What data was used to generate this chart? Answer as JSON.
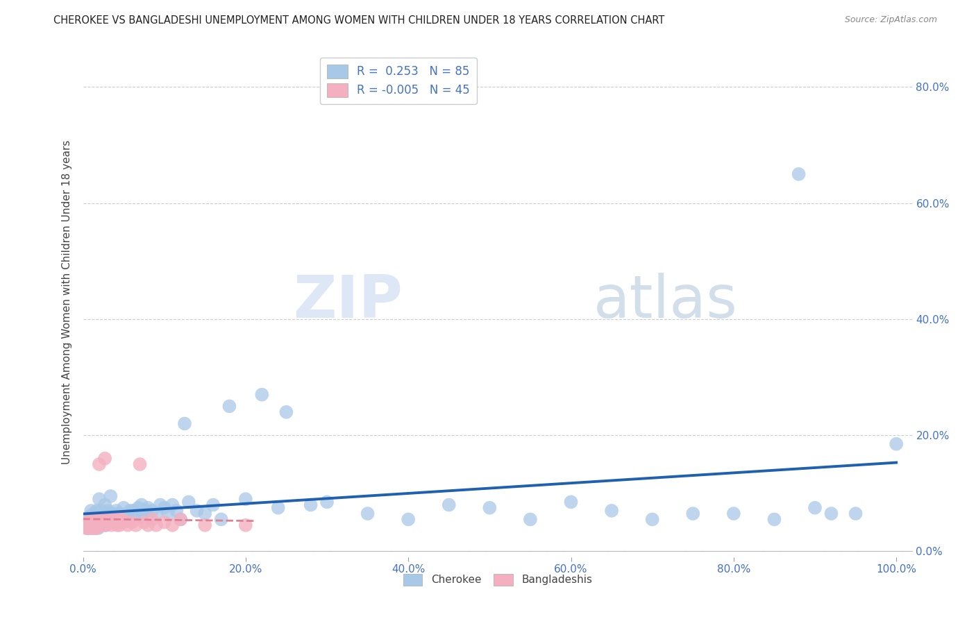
{
  "title": "CHEROKEE VS BANGLADESHI UNEMPLOYMENT AMONG WOMEN WITH CHILDREN UNDER 18 YEARS CORRELATION CHART",
  "source": "Source: ZipAtlas.com",
  "ylabel": "Unemployment Among Women with Children Under 18 years",
  "cherokee_color": "#a8c8e8",
  "bangladeshi_color": "#f4b0c0",
  "cherokee_line_color": "#2060b0",
  "bangladeshi_line_color": "#e08090",
  "background_color": "#ffffff",
  "grid_color": "#cccccc",
  "watermark_zip": "#c8d8ee",
  "watermark_atlas": "#b8c8e0",
  "cherokee_R": 0.253,
  "cherokee_N": 85,
  "bangladeshi_R": -0.005,
  "bangladeshi_N": 45,
  "ytick_vals": [
    0.0,
    0.2,
    0.4,
    0.6,
    0.8
  ],
  "ytick_labels": [
    "0.0%",
    "20.0%",
    "40.0%",
    "60.0%",
    "80.0%"
  ],
  "xtick_vals": [
    0.0,
    0.2,
    0.4,
    0.6,
    0.8,
    1.0
  ],
  "xtick_labels": [
    "0.0%",
    "20.0%",
    "40.0%",
    "60.0%",
    "80.0%",
    "100.0%"
  ],
  "cherokee_x": [
    0.005,
    0.007,
    0.008,
    0.009,
    0.01,
    0.01,
    0.01,
    0.012,
    0.013,
    0.015,
    0.016,
    0.017,
    0.018,
    0.019,
    0.02,
    0.02,
    0.021,
    0.022,
    0.023,
    0.025,
    0.026,
    0.027,
    0.028,
    0.03,
    0.031,
    0.032,
    0.033,
    0.034,
    0.035,
    0.038,
    0.04,
    0.041,
    0.043,
    0.045,
    0.048,
    0.05,
    0.052,
    0.055,
    0.058,
    0.06,
    0.062,
    0.065,
    0.068,
    0.07,
    0.072,
    0.075,
    0.078,
    0.08,
    0.085,
    0.09,
    0.095,
    0.1,
    0.105,
    0.11,
    0.115,
    0.12,
    0.125,
    0.13,
    0.14,
    0.15,
    0.16,
    0.17,
    0.18,
    0.2,
    0.22,
    0.24,
    0.25,
    0.28,
    0.3,
    0.35,
    0.4,
    0.45,
    0.5,
    0.55,
    0.6,
    0.65,
    0.7,
    0.75,
    0.8,
    0.85,
    0.88,
    0.9,
    0.92,
    0.95,
    1.0
  ],
  "cherokee_y": [
    0.04,
    0.05,
    0.06,
    0.05,
    0.04,
    0.055,
    0.07,
    0.05,
    0.065,
    0.04,
    0.06,
    0.07,
    0.05,
    0.04,
    0.06,
    0.09,
    0.05,
    0.07,
    0.05,
    0.06,
    0.055,
    0.08,
    0.045,
    0.05,
    0.07,
    0.065,
    0.06,
    0.095,
    0.05,
    0.065,
    0.055,
    0.07,
    0.05,
    0.065,
    0.055,
    0.075,
    0.06,
    0.055,
    0.07,
    0.065,
    0.07,
    0.06,
    0.075,
    0.06,
    0.08,
    0.065,
    0.07,
    0.075,
    0.07,
    0.065,
    0.08,
    0.075,
    0.065,
    0.08,
    0.07,
    0.055,
    0.22,
    0.085,
    0.07,
    0.065,
    0.08,
    0.055,
    0.25,
    0.09,
    0.27,
    0.075,
    0.24,
    0.08,
    0.085,
    0.065,
    0.055,
    0.08,
    0.075,
    0.055,
    0.085,
    0.07,
    0.055,
    0.065,
    0.065,
    0.055,
    0.65,
    0.075,
    0.065,
    0.065,
    0.185
  ],
  "bangladeshi_x": [
    0.004,
    0.005,
    0.006,
    0.007,
    0.008,
    0.009,
    0.01,
    0.011,
    0.012,
    0.013,
    0.014,
    0.015,
    0.016,
    0.017,
    0.018,
    0.019,
    0.02,
    0.021,
    0.022,
    0.023,
    0.025,
    0.027,
    0.028,
    0.03,
    0.032,
    0.035,
    0.038,
    0.04,
    0.042,
    0.045,
    0.048,
    0.05,
    0.055,
    0.06,
    0.065,
    0.07,
    0.075,
    0.08,
    0.085,
    0.09,
    0.1,
    0.11,
    0.12,
    0.15,
    0.2
  ],
  "bangladeshi_y": [
    0.04,
    0.05,
    0.04,
    0.05,
    0.04,
    0.05,
    0.04,
    0.055,
    0.04,
    0.05,
    0.04,
    0.05,
    0.055,
    0.04,
    0.055,
    0.045,
    0.15,
    0.055,
    0.045,
    0.05,
    0.055,
    0.16,
    0.045,
    0.05,
    0.055,
    0.045,
    0.05,
    0.055,
    0.045,
    0.045,
    0.055,
    0.05,
    0.045,
    0.05,
    0.045,
    0.15,
    0.05,
    0.045,
    0.055,
    0.045,
    0.05,
    0.045,
    0.055,
    0.045,
    0.045
  ]
}
